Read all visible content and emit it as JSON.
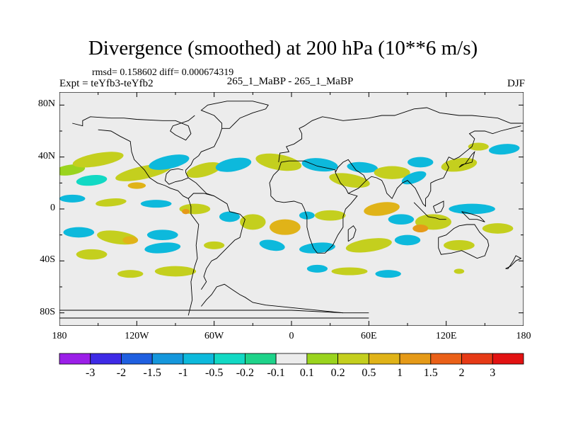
{
  "chart_data": {
    "type": "heatmap",
    "title": "Divergence (smoothed) at 200 hPa (10**6 m/s)",
    "stats_text": "rmsd= 0.158602  diff= 0.000674319",
    "left_label": "Expt = teYfb3-teYfb2",
    "center_label": "265_1_MaBP - 265_1_MaBP",
    "right_label": "DJF",
    "x_ticks": [
      "180",
      "120W",
      "60W",
      "0",
      "60E",
      "120E",
      "180"
    ],
    "x_tick_values": [
      -180,
      -120,
      -60,
      0,
      60,
      120,
      180
    ],
    "y_ticks": [
      "80N",
      "40N",
      "0",
      "40S",
      "80S"
    ],
    "y_tick_values": [
      80,
      40,
      0,
      -40,
      -80
    ],
    "xlim": [
      -180,
      180
    ],
    "ylim": [
      -90,
      90
    ],
    "colorbar": {
      "levels": [
        "-3",
        "-2",
        "-1.5",
        "-1",
        "-0.5",
        "-0.2",
        "-0.1",
        "0.1",
        "0.2",
        "0.5",
        "1",
        "1.5",
        "2",
        "3"
      ],
      "colors": [
        "#9b1fe8",
        "#3e2ae6",
        "#1f5fe0",
        "#1597dc",
        "#0db9dc",
        "#12d9c4",
        "#1ed38a",
        "#ececec",
        "#9ad41e",
        "#c4cf1e",
        "#e0b318",
        "#e59a18",
        "#ea6018",
        "#e63a16",
        "#e21212"
      ]
    },
    "anomaly_blobs": [
      {
        "lon": -172,
        "lat": 30,
        "a": 12,
        "b": 4,
        "level": 8,
        "rot": -8
      },
      {
        "lon": -150,
        "lat": 38,
        "a": 20,
        "b": 5,
        "level": 9,
        "rot": -10
      },
      {
        "lon": -115,
        "lat": 28,
        "a": 22,
        "b": 5,
        "level": 9,
        "rot": -12
      },
      {
        "lon": -120,
        "lat": 18,
        "a": 7,
        "b": 2.5,
        "level": 10,
        "rot": 0
      },
      {
        "lon": -95,
        "lat": 36,
        "a": 16,
        "b": 5,
        "level": 4,
        "rot": -12
      },
      {
        "lon": -155,
        "lat": 22,
        "a": 12,
        "b": 4,
        "level": 5,
        "rot": -6
      },
      {
        "lon": -68,
        "lat": 30,
        "a": 14,
        "b": 5,
        "level": 9,
        "rot": -15
      },
      {
        "lon": -45,
        "lat": 34,
        "a": 14,
        "b": 5,
        "level": 4,
        "rot": -10
      },
      {
        "lon": -10,
        "lat": 36,
        "a": 18,
        "b": 6,
        "level": 9,
        "rot": 10
      },
      {
        "lon": 22,
        "lat": 34,
        "a": 14,
        "b": 5,
        "level": 4,
        "rot": 6
      },
      {
        "lon": 45,
        "lat": 22,
        "a": 16,
        "b": 5,
        "level": 9,
        "rot": 10
      },
      {
        "lon": 55,
        "lat": 32,
        "a": 12,
        "b": 4,
        "level": 4,
        "rot": 5
      },
      {
        "lon": 78,
        "lat": 28,
        "a": 14,
        "b": 5,
        "level": 9,
        "rot": 0
      },
      {
        "lon": 95,
        "lat": 24,
        "a": 10,
        "b": 4,
        "level": 4,
        "rot": -20
      },
      {
        "lon": 100,
        "lat": 36,
        "a": 10,
        "b": 4,
        "level": 4,
        "rot": 0
      },
      {
        "lon": 130,
        "lat": 34,
        "a": 14,
        "b": 5,
        "level": 9,
        "rot": -8
      },
      {
        "lon": 165,
        "lat": 46,
        "a": 12,
        "b": 4,
        "level": 4,
        "rot": -5
      },
      {
        "lon": 145,
        "lat": 48,
        "a": 8,
        "b": 3,
        "level": 9,
        "rot": 0
      },
      {
        "lon": -170,
        "lat": 8,
        "a": 10,
        "b": 3,
        "level": 4,
        "rot": 0
      },
      {
        "lon": -140,
        "lat": 5,
        "a": 12,
        "b": 3,
        "level": 9,
        "rot": -5
      },
      {
        "lon": -105,
        "lat": 4,
        "a": 12,
        "b": 3,
        "level": 4,
        "rot": 0
      },
      {
        "lon": -75,
        "lat": 0,
        "a": 12,
        "b": 4,
        "level": 9,
        "rot": 0
      },
      {
        "lon": -82,
        "lat": -2,
        "a": 3,
        "b": 2,
        "level": 11,
        "rot": 0
      },
      {
        "lon": -48,
        "lat": -6,
        "a": 8,
        "b": 4,
        "level": 4,
        "rot": 0
      },
      {
        "lon": -30,
        "lat": -10,
        "a": 10,
        "b": 6,
        "level": 9,
        "rot": 0
      },
      {
        "lon": -5,
        "lat": -14,
        "a": 12,
        "b": 6,
        "level": 10,
        "rot": 0
      },
      {
        "lon": 12,
        "lat": -5,
        "a": 6,
        "b": 3,
        "level": 4,
        "rot": 0
      },
      {
        "lon": 30,
        "lat": -5,
        "a": 12,
        "b": 4,
        "level": 9,
        "rot": 0
      },
      {
        "lon": 70,
        "lat": 0,
        "a": 14,
        "b": 5,
        "level": 10,
        "rot": -8
      },
      {
        "lon": 85,
        "lat": -8,
        "a": 10,
        "b": 4,
        "level": 4,
        "rot": 0
      },
      {
        "lon": 110,
        "lat": -10,
        "a": 14,
        "b": 6,
        "level": 9,
        "rot": 0
      },
      {
        "lon": 100,
        "lat": -15,
        "a": 6,
        "b": 3,
        "level": 11,
        "rot": 0
      },
      {
        "lon": 140,
        "lat": 0,
        "a": 18,
        "b": 4,
        "level": 4,
        "rot": 0
      },
      {
        "lon": 160,
        "lat": -15,
        "a": 12,
        "b": 4,
        "level": 9,
        "rot": 0
      },
      {
        "lon": -165,
        "lat": -18,
        "a": 12,
        "b": 4,
        "level": 4,
        "rot": 0
      },
      {
        "lon": -135,
        "lat": -22,
        "a": 16,
        "b": 5,
        "level": 9,
        "rot": 8
      },
      {
        "lon": -125,
        "lat": -24,
        "a": 6,
        "b": 3,
        "level": 10,
        "rot": 0
      },
      {
        "lon": -100,
        "lat": -20,
        "a": 12,
        "b": 4,
        "level": 4,
        "rot": 0
      },
      {
        "lon": -100,
        "lat": -30,
        "a": 14,
        "b": 4,
        "level": 4,
        "rot": -5
      },
      {
        "lon": -155,
        "lat": -35,
        "a": 12,
        "b": 4,
        "level": 9,
        "rot": 0
      },
      {
        "lon": -60,
        "lat": -28,
        "a": 8,
        "b": 3,
        "level": 9,
        "rot": 0
      },
      {
        "lon": -15,
        "lat": -28,
        "a": 10,
        "b": 4,
        "level": 4,
        "rot": 10
      },
      {
        "lon": 20,
        "lat": -30,
        "a": 14,
        "b": 4,
        "level": 4,
        "rot": -5
      },
      {
        "lon": 60,
        "lat": -28,
        "a": 18,
        "b": 5,
        "level": 9,
        "rot": -8
      },
      {
        "lon": 90,
        "lat": -24,
        "a": 10,
        "b": 4,
        "level": 4,
        "rot": 0
      },
      {
        "lon": 130,
        "lat": -28,
        "a": 12,
        "b": 4,
        "level": 9,
        "rot": 0
      },
      {
        "lon": -90,
        "lat": -48,
        "a": 16,
        "b": 4,
        "level": 9,
        "rot": 0
      },
      {
        "lon": -125,
        "lat": -50,
        "a": 10,
        "b": 3,
        "level": 9,
        "rot": 0
      },
      {
        "lon": 45,
        "lat": -48,
        "a": 14,
        "b": 3,
        "level": 9,
        "rot": 0
      },
      {
        "lon": 20,
        "lat": -46,
        "a": 8,
        "b": 3,
        "level": 4,
        "rot": 0
      },
      {
        "lon": 75,
        "lat": -50,
        "a": 10,
        "b": 3,
        "level": 4,
        "rot": 0
      },
      {
        "lon": 130,
        "lat": -48,
        "a": 4,
        "b": 2,
        "level": 9,
        "rot": 0
      }
    ]
  }
}
